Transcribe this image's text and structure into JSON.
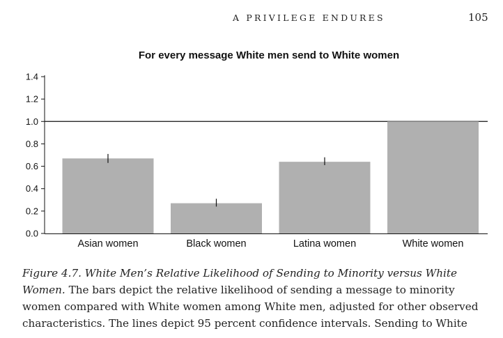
{
  "header": {
    "running_title": "A PRIVILEGE ENDURES",
    "page_number": "105"
  },
  "chart_data": {
    "type": "bar",
    "title": "For every message White men send to White women",
    "xlabel": "",
    "ylabel": "",
    "ylim": [
      0,
      1.4
    ],
    "yticks": [
      "0.0",
      "0.2",
      "0.4",
      "0.6",
      "0.8",
      "1.0",
      "1.2",
      "1.4"
    ],
    "reference_line": 1.0,
    "categories": [
      "Asian women",
      "Black women",
      "Latina women",
      "White women"
    ],
    "values": [
      0.67,
      0.27,
      0.64,
      1.0
    ],
    "ci_low": [
      0.63,
      0.24,
      0.61,
      null
    ],
    "ci_high": [
      0.71,
      0.31,
      0.68,
      null
    ],
    "bar_color": "#b0b0b0",
    "grid": false
  },
  "caption": {
    "label": "Figure 4.7.",
    "heading": "White Men’s Relative Likelihood of Sending to Minority versus White Women.",
    "body": "The bars depict the relative likelihood of sending a message to minority women compared with White women among White men, adjusted for other observed characteristics. The lines depict 95 percent confidence intervals. Sending to White"
  }
}
